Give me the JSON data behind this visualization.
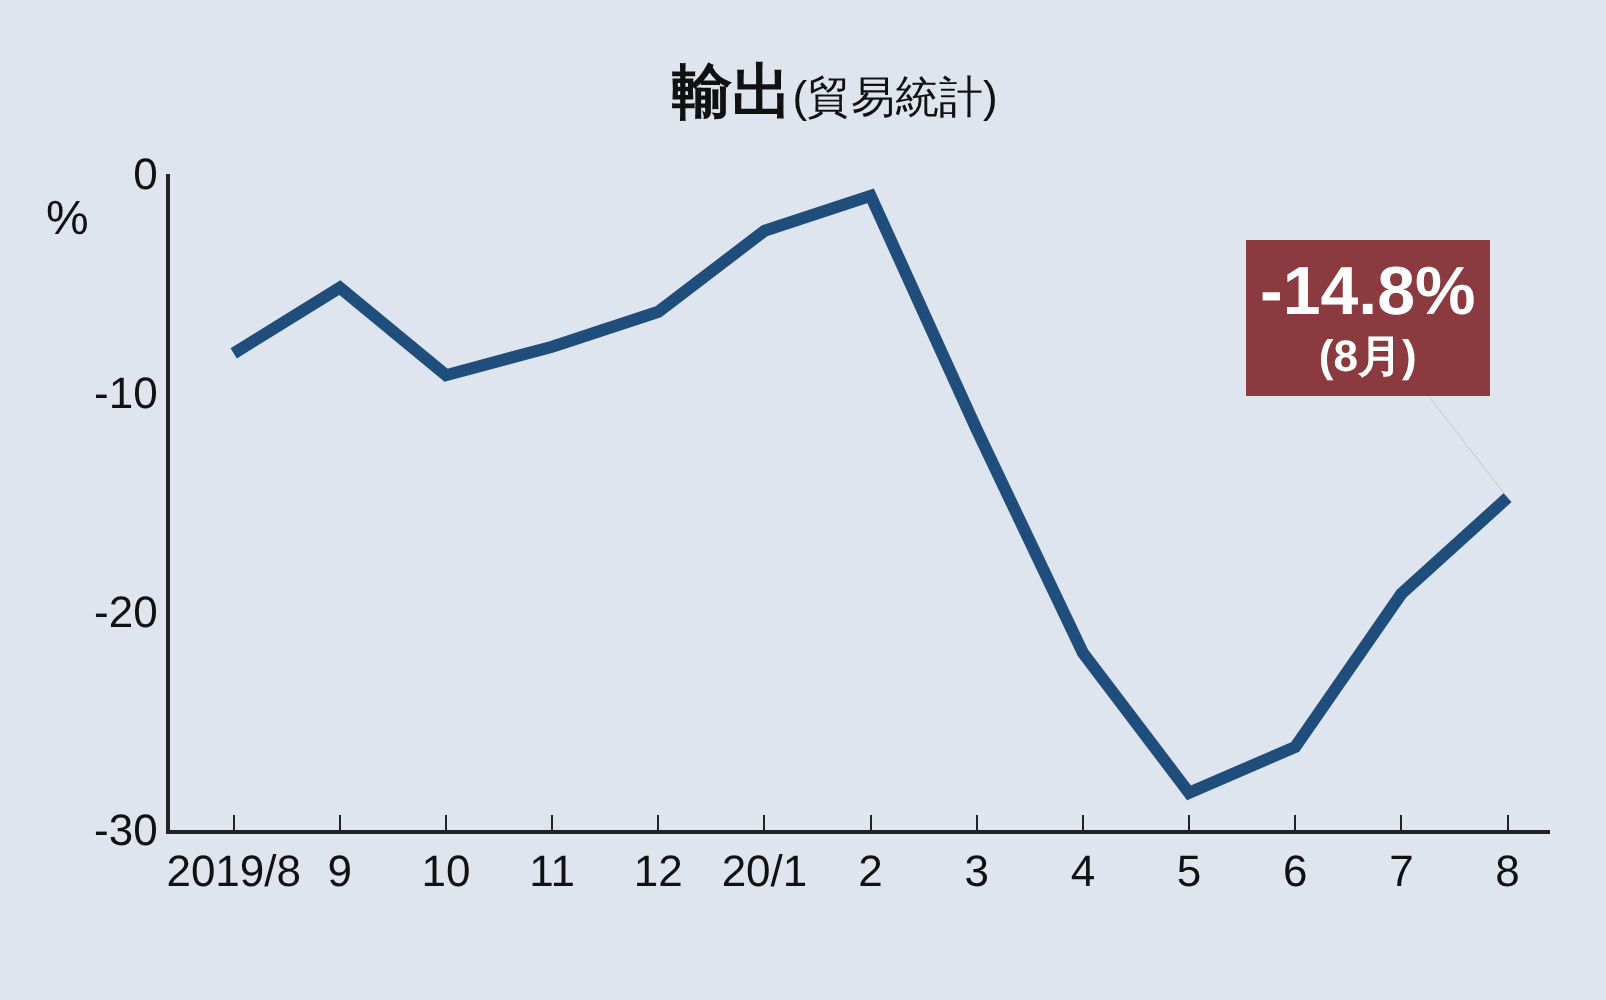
{
  "chart_data": {
    "type": "line",
    "title": "輸出",
    "subtitle": "(貿易統計)",
    "ylabel": "%",
    "categories": [
      "2019/8",
      "9",
      "10",
      "11",
      "12",
      "20/1",
      "2",
      "3",
      "4",
      "5",
      "6",
      "7",
      "8"
    ],
    "series": [
      {
        "color": "#1f4e7c",
        "values": [
          -8.2,
          -5.2,
          -9.2,
          -7.9,
          -6.3,
          -2.6,
          -1.0,
          -11.7,
          -21.9,
          -28.3,
          -26.2,
          -19.2,
          -14.8
        ]
      }
    ],
    "ylim": [
      -30,
      0
    ],
    "yticks": [
      0,
      -10,
      -20,
      -30
    ],
    "grid": false,
    "marker": "none",
    "line_style": "solid",
    "annotations": [
      {
        "text": "-14.8%\n(8月)",
        "x": "8",
        "y": -14.8
      }
    ]
  }
}
